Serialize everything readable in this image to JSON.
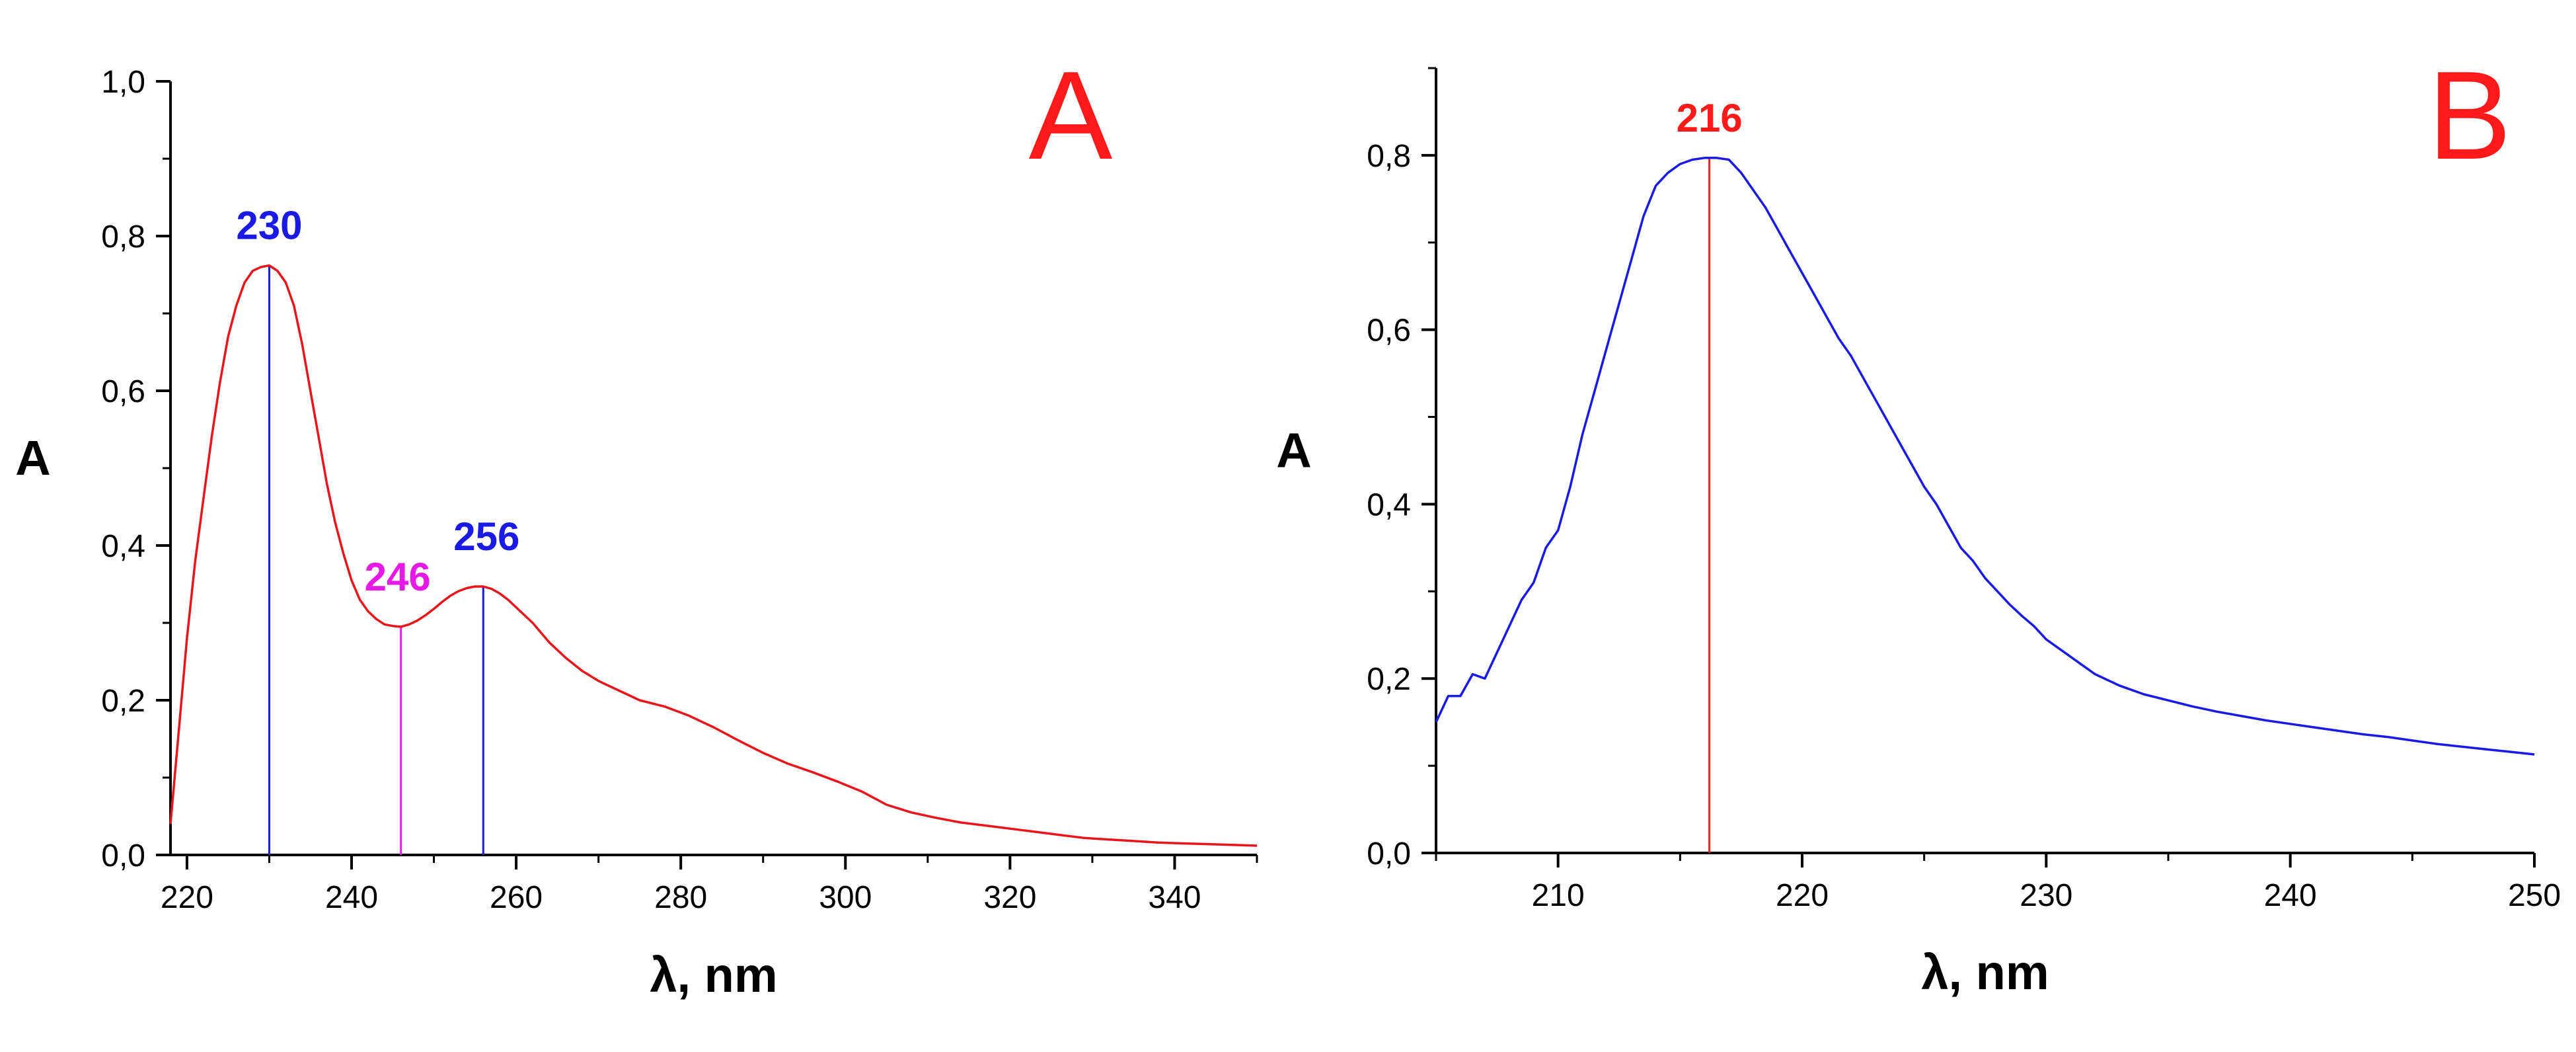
{
  "chart_data": [
    {
      "type": "line",
      "panel_label": "A",
      "xlabel": "λ, nm",
      "ylabel": "A",
      "xlim": [
        218,
        350
      ],
      "ylim": [
        0,
        1.0
      ],
      "x_ticks": [
        220,
        240,
        260,
        280,
        300,
        320,
        340
      ],
      "x_tick_labels": [
        "220",
        "240",
        "260",
        "280",
        "300",
        "320",
        "340"
      ],
      "y_ticks": [
        0,
        0.2,
        0.4,
        0.6,
        0.8,
        1.0
      ],
      "y_tick_labels": [
        "0,0",
        "0,2",
        "0,4",
        "0,6",
        "0,8",
        "1,0"
      ],
      "grid": false,
      "line_color": "#e8161b",
      "series": [
        {
          "x": [
            218,
            219,
            220,
            221,
            222,
            223,
            224,
            225,
            226,
            227,
            228,
            229,
            230,
            231,
            232,
            233,
            234,
            235,
            236,
            237,
            238,
            239,
            240,
            241,
            242,
            243,
            244,
            245,
            246,
            247,
            248,
            249,
            250,
            251,
            252,
            253,
            254,
            255,
            256,
            257,
            258,
            259,
            260,
            262,
            264,
            266,
            268,
            270,
            272,
            275,
            278,
            281,
            284,
            287,
            290,
            293,
            296,
            299,
            302,
            305,
            308,
            311,
            314,
            317,
            320,
            323,
            326,
            329,
            332,
            335,
            338,
            341,
            344,
            347,
            350
          ],
          "y": [
            0.04,
            0.16,
            0.28,
            0.38,
            0.46,
            0.54,
            0.61,
            0.67,
            0.71,
            0.74,
            0.755,
            0.76,
            0.762,
            0.755,
            0.74,
            0.71,
            0.66,
            0.6,
            0.54,
            0.48,
            0.43,
            0.39,
            0.355,
            0.33,
            0.315,
            0.305,
            0.298,
            0.296,
            0.295,
            0.298,
            0.303,
            0.31,
            0.318,
            0.327,
            0.335,
            0.341,
            0.345,
            0.347,
            0.347,
            0.344,
            0.338,
            0.33,
            0.32,
            0.3,
            0.275,
            0.255,
            0.238,
            0.225,
            0.215,
            0.2,
            0.192,
            0.18,
            0.165,
            0.148,
            0.132,
            0.118,
            0.107,
            0.095,
            0.082,
            0.065,
            0.055,
            0.048,
            0.042,
            0.038,
            0.034,
            0.03,
            0.026,
            0.022,
            0.02,
            0.018,
            0.016,
            0.015,
            0.014,
            0.013,
            0.012
          ]
        }
      ],
      "markers": [
        {
          "x": 230,
          "y": 0.762,
          "label": "230",
          "color": "#1a1ae6"
        },
        {
          "x": 246,
          "y": 0.295,
          "label": "246",
          "color": "#e619e6"
        },
        {
          "x": 256,
          "y": 0.347,
          "label": "256",
          "color": "#1a1ae6"
        }
      ]
    },
    {
      "type": "line",
      "panel_label": "B",
      "xlabel": "λ, nm",
      "ylabel": "A",
      "xlim": [
        205,
        250
      ],
      "ylim": [
        0,
        0.9
      ],
      "x_ticks": [
        210,
        220,
        230,
        240,
        250
      ],
      "x_tick_labels": [
        "210",
        "220",
        "230",
        "240",
        "250"
      ],
      "y_ticks": [
        0,
        0.2,
        0.4,
        0.6,
        0.8
      ],
      "y_tick_labels": [
        "0,0",
        "0,2",
        "0,4",
        "0,6",
        "0,8"
      ],
      "grid": false,
      "line_color": "#1a1ae6",
      "series": [
        {
          "x": [
            205,
            205.5,
            206,
            206.5,
            207,
            207.5,
            208,
            208.5,
            209,
            209.5,
            210,
            210.5,
            211,
            211.5,
            212,
            212.5,
            213,
            213.5,
            214,
            214.5,
            215,
            215.5,
            216,
            216.5,
            217,
            217.5,
            218,
            218.5,
            219,
            219.5,
            220,
            220.5,
            221,
            221.5,
            222,
            222.5,
            223,
            223.5,
            224,
            224.5,
            225,
            225.5,
            226,
            226.5,
            227,
            227.5,
            228,
            228.5,
            229,
            229.5,
            230,
            231,
            232,
            233,
            234,
            235,
            236,
            237,
            238,
            239,
            240,
            241,
            242,
            243,
            244,
            245,
            246,
            247,
            248,
            249,
            250
          ],
          "y": [
            0.15,
            0.18,
            0.18,
            0.205,
            0.2,
            0.23,
            0.26,
            0.29,
            0.31,
            0.35,
            0.37,
            0.42,
            0.48,
            0.53,
            0.58,
            0.63,
            0.68,
            0.73,
            0.765,
            0.78,
            0.79,
            0.795,
            0.797,
            0.797,
            0.795,
            0.78,
            0.76,
            0.74,
            0.715,
            0.69,
            0.665,
            0.64,
            0.615,
            0.59,
            0.57,
            0.545,
            0.52,
            0.495,
            0.47,
            0.445,
            0.42,
            0.4,
            0.375,
            0.35,
            0.335,
            0.315,
            0.3,
            0.285,
            0.272,
            0.26,
            0.245,
            0.225,
            0.205,
            0.192,
            0.182,
            0.175,
            0.168,
            0.162,
            0.157,
            0.152,
            0.148,
            0.144,
            0.14,
            0.136,
            0.133,
            0.129,
            0.125,
            0.122,
            0.119,
            0.116,
            0.113
          ]
        }
      ],
      "markers": [
        {
          "x": 216.2,
          "y": 0.797,
          "label": "216",
          "color": "#ff1a1a"
        }
      ]
    }
  ]
}
